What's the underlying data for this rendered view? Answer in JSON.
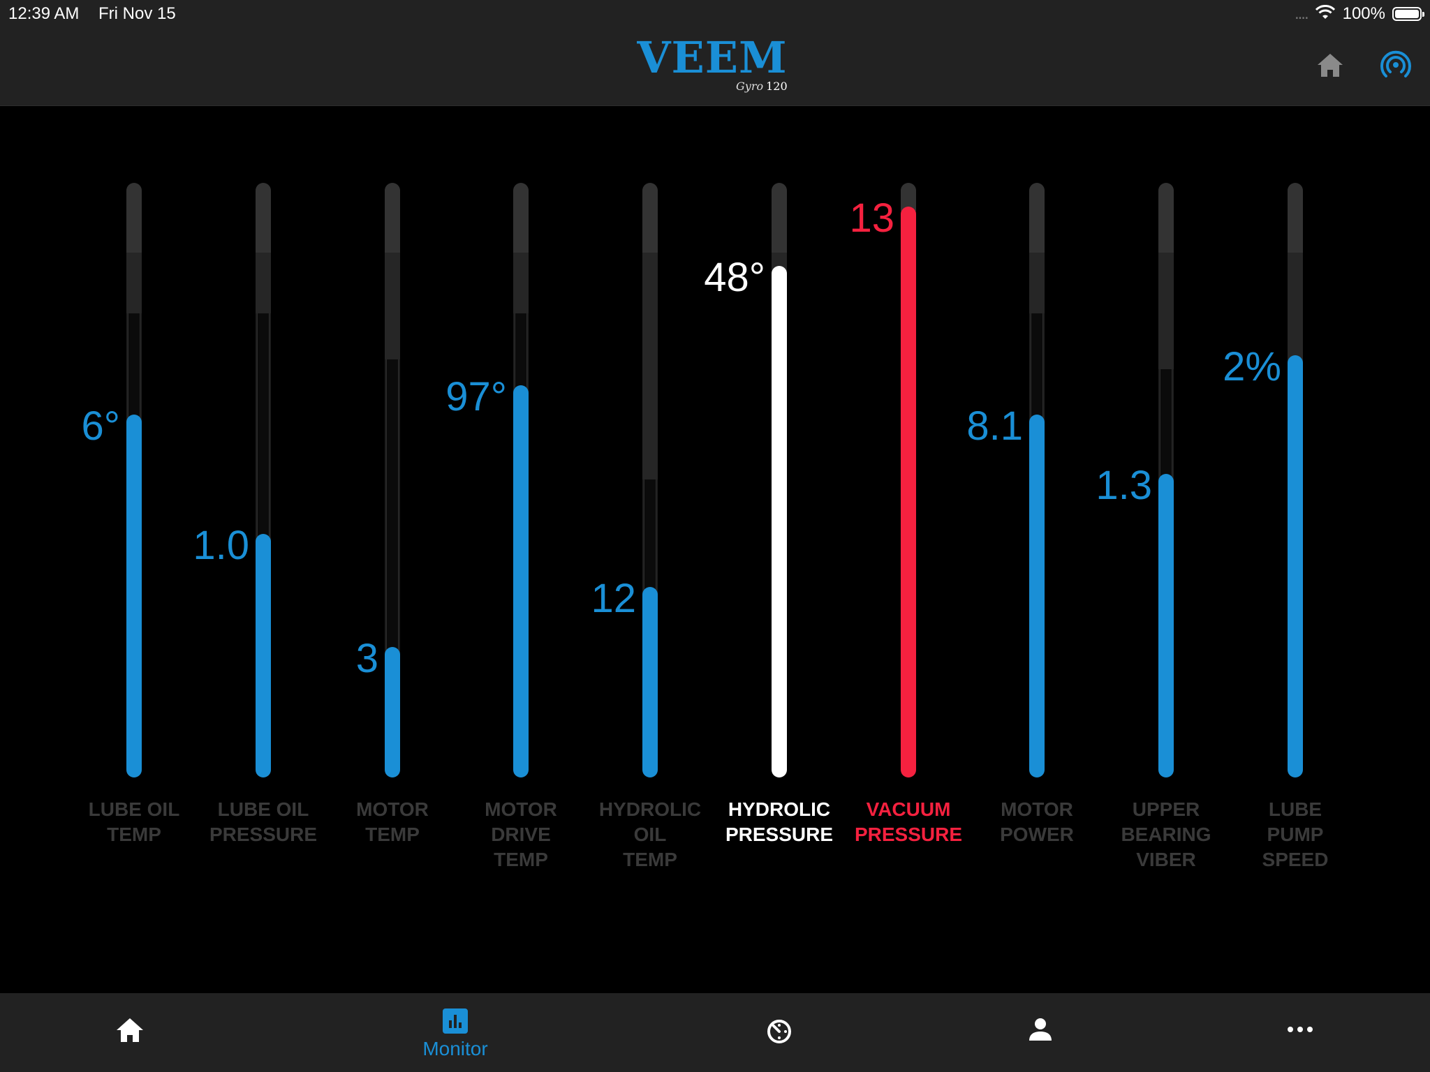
{
  "status_bar": {
    "time": "12:39 AM",
    "date": "Fri Nov 15",
    "signal": "....",
    "battery": "100%"
  },
  "header": {
    "logo_text": "VEEM",
    "logo_script": "Gyro",
    "logo_model": "120",
    "icons": [
      "home-icon",
      "wireless-icon"
    ]
  },
  "colors": {
    "accent_blue": "#1a8fd6",
    "alert_red": "#f5213f",
    "selected_white": "#ffffff",
    "inactive_label": "#3a3a3a"
  },
  "gauges": [
    {
      "label": [
        "LUBE OIL",
        "TEMP"
      ],
      "value": "6°",
      "level": 0.61,
      "state": "normal"
    },
    {
      "label": [
        "LUBE OIL",
        "PRESSURE"
      ],
      "value": "1.0",
      "level": 0.41,
      "state": "normal"
    },
    {
      "label": [
        "MOTOR",
        "TEMP"
      ],
      "value": "3",
      "level": 0.22,
      "state": "normal"
    },
    {
      "label": [
        "MOTOR",
        "DRIVE",
        "TEMP"
      ],
      "value": "97°",
      "level": 0.66,
      "state": "normal"
    },
    {
      "label": [
        "HYDROLIC",
        "OIL",
        "TEMP"
      ],
      "value": "12",
      "level": 0.32,
      "state": "normal"
    },
    {
      "label": [
        "HYDROLIC",
        "PRESSURE"
      ],
      "value": "48°",
      "level": 0.86,
      "state": "selected"
    },
    {
      "label": [
        "VACUUM",
        "PRESSURE"
      ],
      "value": "13",
      "level": 0.96,
      "state": "alert"
    },
    {
      "label": [
        "MOTOR",
        "POWER"
      ],
      "value": "8.1",
      "level": 0.61,
      "state": "normal"
    },
    {
      "label": [
        "UPPER",
        "BEARING",
        "VIBER"
      ],
      "value": "1.3",
      "level": 0.51,
      "state": "normal"
    },
    {
      "label": [
        "LUBE",
        "PUMP",
        "SPEED"
      ],
      "value": "2%",
      "level": 0.71,
      "state": "normal"
    }
  ],
  "tabbar": {
    "tabs": [
      {
        "icon": "home-icon",
        "label": ""
      },
      {
        "icon": "monitor-chart-icon",
        "label": "Monitor",
        "active": true
      },
      {
        "icon": "timer-icon",
        "label": ""
      },
      {
        "icon": "user-icon",
        "label": ""
      },
      {
        "icon": "more-icon",
        "label": ""
      }
    ]
  }
}
